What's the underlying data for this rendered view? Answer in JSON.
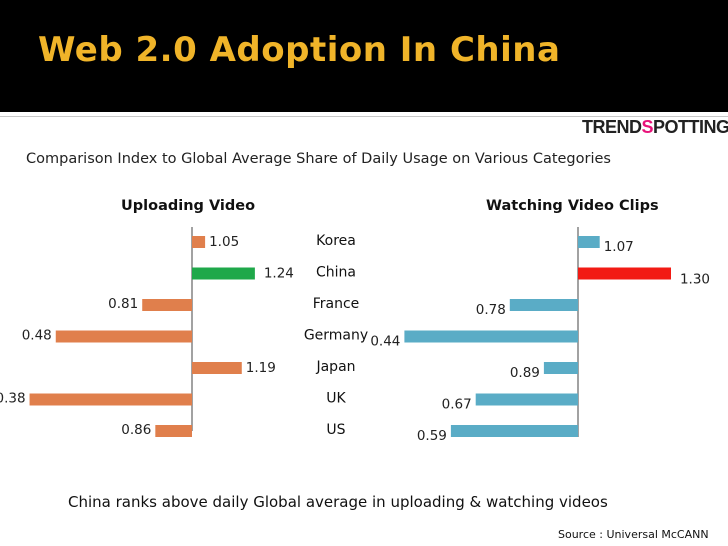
{
  "slide": {
    "title": "Web 2.0 Adoption In China",
    "logo_prefix": "TREND",
    "logo_mark": "S",
    "logo_suffix": "POTTING",
    "subtitle": "Comparison Index to Global Average Share of Daily Usage on  Various Categories",
    "footer_note": "China  ranks  above daily Global average in uploading & watching videos",
    "source": "Source : Universal McCANN"
  },
  "colors": {
    "header_bg": "#000000",
    "title": "#f0b429",
    "upload_bar": "#e07f4c",
    "watch_bar": "#5aacc6",
    "china_upload": "#1fa84a",
    "china_watch": "#f21b14"
  },
  "chart_data": [
    {
      "type": "bar",
      "orientation": "horizontal",
      "title": "Uploading Video",
      "categories": [
        "Korea",
        "China",
        "France",
        "Germany",
        "Japan",
        "UK",
        "US"
      ],
      "values": [
        1.05,
        1.24,
        0.81,
        0.48,
        1.19,
        0.38,
        0.86
      ],
      "value_labels": [
        "1.05",
        "1.24",
        "0.81",
        "0.48",
        "1.19",
        "0.38",
        "0.86"
      ],
      "baseline": 1.0,
      "highlight": "China",
      "xlim": [
        0.3,
        1.3
      ]
    },
    {
      "type": "bar",
      "orientation": "horizontal",
      "title": "Watching Video Clips",
      "categories": [
        "Korea",
        "China",
        "France",
        "Germany",
        "Japan",
        "UK",
        "US"
      ],
      "values": [
        1.07,
        1.3,
        0.78,
        0.44,
        0.89,
        0.67,
        0.59
      ],
      "value_labels": [
        "1.07",
        "1.30",
        "0.78",
        "0.44",
        "0.89",
        "0.67",
        "0.59"
      ],
      "baseline": 1.0,
      "highlight": "China",
      "xlim": [
        0.3,
        1.3
      ]
    }
  ]
}
